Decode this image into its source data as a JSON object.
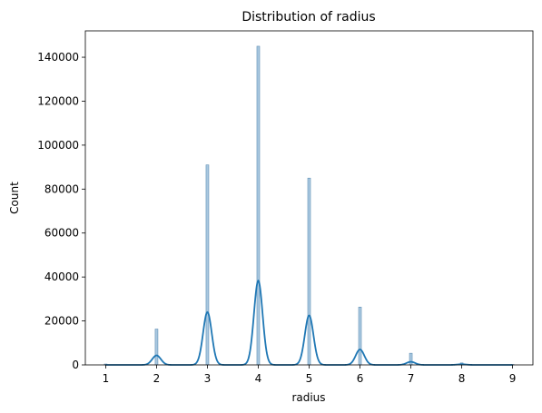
{
  "chart_data": {
    "type": "bar",
    "title": "Distribution of radius",
    "xlabel": "radius",
    "ylabel": "Count",
    "xlim": [
      0.6,
      9.4
    ],
    "ylim": [
      0,
      152000
    ],
    "x_ticks": [
      1,
      2,
      3,
      4,
      5,
      6,
      7,
      8,
      9
    ],
    "y_ticks": [
      0,
      20000,
      40000,
      60000,
      80000,
      100000,
      120000,
      140000
    ],
    "grid": false,
    "legend": "none",
    "histogram": {
      "bin_centers": [
        1,
        2,
        3,
        4,
        5,
        6,
        7,
        8,
        9
      ],
      "counts": [
        400,
        16300,
        91000,
        145000,
        85000,
        26300,
        5300,
        900,
        200
      ]
    },
    "kde": {
      "components": [
        {
          "center": 2,
          "peak": 4300
        },
        {
          "center": 3,
          "peak": 24000
        },
        {
          "center": 4,
          "peak": 38300
        },
        {
          "center": 5,
          "peak": 22500
        },
        {
          "center": 6,
          "peak": 7000
        },
        {
          "center": 7,
          "peak": 1400
        },
        {
          "center": 8,
          "peak": 300
        }
      ]
    },
    "colors": {
      "bar_fill": "#a9c8e0",
      "bar_edge": "#5f8fb4",
      "kde_line": "#1f77b4"
    }
  }
}
